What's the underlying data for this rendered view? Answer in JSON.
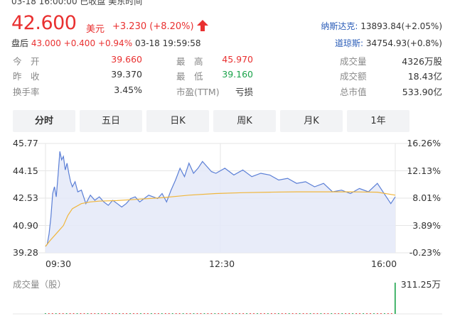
{
  "header": {
    "topline": "03-18 16:00:00  已收盘  美东时间",
    "price": "42.600",
    "currency": "美元",
    "change": "+3.230 (+8.20%)",
    "after_hours": {
      "label": "盘后",
      "price": "43.000",
      "change": "+0.400",
      "pct": "+0.94%",
      "time": "03-18 19:59:58"
    },
    "indices": [
      {
        "name": "纳斯达克:",
        "value": "13893.84(+2.05%)"
      },
      {
        "name": "道琼斯:",
        "value": "34754.93(+0.8%)"
      }
    ]
  },
  "stats": {
    "rows": [
      [
        {
          "label": "今　开",
          "value": "39.660",
          "color": "#e93030"
        },
        {
          "label": "最　高",
          "value": "45.970",
          "color": "#e93030"
        },
        {
          "label": "成交量",
          "value": "4326万股",
          "color": "#333333"
        }
      ],
      [
        {
          "label": "昨　收",
          "value": "39.370",
          "color": "#333333"
        },
        {
          "label": "最　低",
          "value": "39.160",
          "color": "#1aa34a"
        },
        {
          "label": "成交额",
          "value": "18.43亿",
          "color": "#333333"
        }
      ],
      [
        {
          "label": "换手率",
          "value": "3.45%",
          "color": "#333333"
        },
        {
          "label": "市盈(TTM)",
          "value": "亏损",
          "color": "#333333"
        },
        {
          "label": "总市值",
          "value": "533.90亿",
          "color": "#333333"
        }
      ]
    ]
  },
  "tabs": [
    {
      "label": "分时",
      "active": true
    },
    {
      "label": "五日",
      "active": false
    },
    {
      "label": "日K",
      "active": false
    },
    {
      "label": "周K",
      "active": false
    },
    {
      "label": "月K",
      "active": false
    },
    {
      "label": "1年",
      "active": false
    }
  ],
  "chart_data": {
    "type": "line",
    "y_left_ticks": [
      "45.77",
      "44.15",
      "42.53",
      "40.90",
      "39.28"
    ],
    "y_right_ticks": [
      "16.26%",
      "12.13%",
      "8.01%",
      "3.89%",
      "-0.23%"
    ],
    "x_ticks": [
      "09:30",
      "12:30",
      "16:00"
    ],
    "ylim": [
      39.28,
      45.77
    ],
    "series": [
      {
        "color": "#5b7fd6",
        "x": [
          0,
          2,
          4,
          6,
          8,
          10,
          12,
          14,
          16,
          18,
          20,
          22,
          24,
          26,
          28,
          30,
          33,
          36,
          40,
          45,
          50,
          55,
          60,
          65,
          70,
          75,
          80,
          85,
          90,
          95,
          100,
          105,
          110,
          115,
          120,
          125,
          130,
          135,
          140,
          145,
          150,
          155,
          160,
          165,
          170,
          175,
          180,
          185,
          190,
          200,
          210,
          220,
          230,
          240,
          250,
          260,
          270,
          280,
          290,
          300,
          310,
          320,
          330,
          340,
          350,
          360,
          370,
          375,
          380,
          385,
          390
        ],
        "values": [
          39.66,
          39.8,
          40.4,
          41.4,
          42.8,
          43.2,
          42.6,
          43.9,
          45.3,
          44.8,
          45.0,
          44.2,
          44.6,
          44.0,
          43.5,
          43.2,
          43.5,
          42.9,
          43.0,
          42.2,
          42.7,
          42.4,
          42.6,
          42.3,
          42.1,
          42.4,
          42.2,
          42.0,
          42.2,
          42.5,
          42.6,
          42.3,
          42.5,
          42.7,
          42.6,
          42.5,
          42.8,
          42.3,
          43.0,
          43.6,
          44.3,
          43.8,
          44.6,
          44.0,
          44.3,
          44.7,
          44.4,
          44.1,
          44.0,
          44.3,
          43.9,
          44.2,
          43.8,
          44.0,
          43.9,
          43.6,
          43.7,
          43.4,
          43.5,
          43.2,
          43.4,
          42.9,
          43.0,
          42.8,
          43.1,
          42.9,
          43.4,
          43.0,
          42.6,
          42.2,
          42.6
        ]
      },
      {
        "color": "#f0b63c",
        "x": [
          0,
          5,
          10,
          15,
          20,
          25,
          30,
          40,
          50,
          60,
          80,
          100,
          130,
          160,
          190,
          220,
          250,
          280,
          310,
          340,
          370,
          390
        ],
        "values": [
          39.66,
          40.0,
          40.3,
          40.6,
          40.9,
          41.5,
          41.9,
          42.2,
          42.3,
          42.35,
          42.38,
          42.45,
          42.55,
          42.7,
          42.8,
          42.85,
          42.88,
          42.9,
          42.9,
          42.9,
          42.88,
          42.7
        ]
      }
    ],
    "volume": {
      "title": "成交量（股）",
      "max_label": "311.25万",
      "max": 311.25,
      "values": [
        6,
        3,
        2,
        2,
        4,
        3,
        2,
        5,
        3,
        2,
        2,
        1,
        2,
        1,
        1,
        2,
        1,
        1,
        1,
        1,
        1,
        1,
        1,
        1,
        1,
        1,
        1,
        1,
        1,
        1,
        1,
        1,
        1,
        1,
        1,
        1,
        1,
        1,
        1,
        1,
        1,
        1,
        1,
        1,
        1,
        1,
        1,
        1,
        1,
        1,
        1,
        1,
        1,
        1,
        1,
        1,
        1,
        1,
        1,
        1,
        1,
        1,
        1,
        1,
        1,
        1,
        1,
        1,
        1,
        1,
        1,
        1,
        1,
        1,
        1,
        1,
        1,
        1,
        1,
        1,
        1,
        1,
        1,
        1,
        1,
        1,
        1,
        1,
        1,
        1,
        1,
        1,
        1,
        1,
        1,
        2,
        2,
        3,
        5,
        311
      ]
    }
  }
}
